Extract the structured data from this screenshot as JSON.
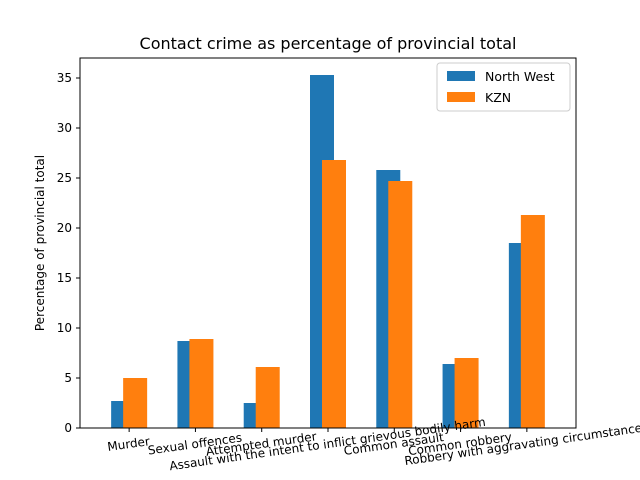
{
  "chart_data": {
    "type": "bar",
    "title": "Contact crime as percentage of provincial total",
    "xlabel": "",
    "ylabel": "Percentage of provincial total",
    "ylim": [
      0,
      37
    ],
    "yticks": [
      0,
      5,
      10,
      15,
      20,
      25,
      30,
      35
    ],
    "grid": false,
    "legend_position": "top-right",
    "categories": [
      "Murder",
      "Sexual offences",
      "Attempted murder",
      "Assault with the intent to inflict grievous bodily harm",
      "Common assault",
      "Common robbery",
      "Robbery with aggravating circumstances"
    ],
    "series": [
      {
        "name": "North West",
        "color": "#1f77b4",
        "values": [
          2.7,
          8.7,
          2.5,
          35.3,
          25.8,
          6.4,
          18.5
        ]
      },
      {
        "name": "KZN",
        "color": "#ff7f0e",
        "values": [
          5.0,
          8.9,
          6.1,
          26.8,
          24.7,
          7.0,
          21.3
        ]
      }
    ]
  }
}
